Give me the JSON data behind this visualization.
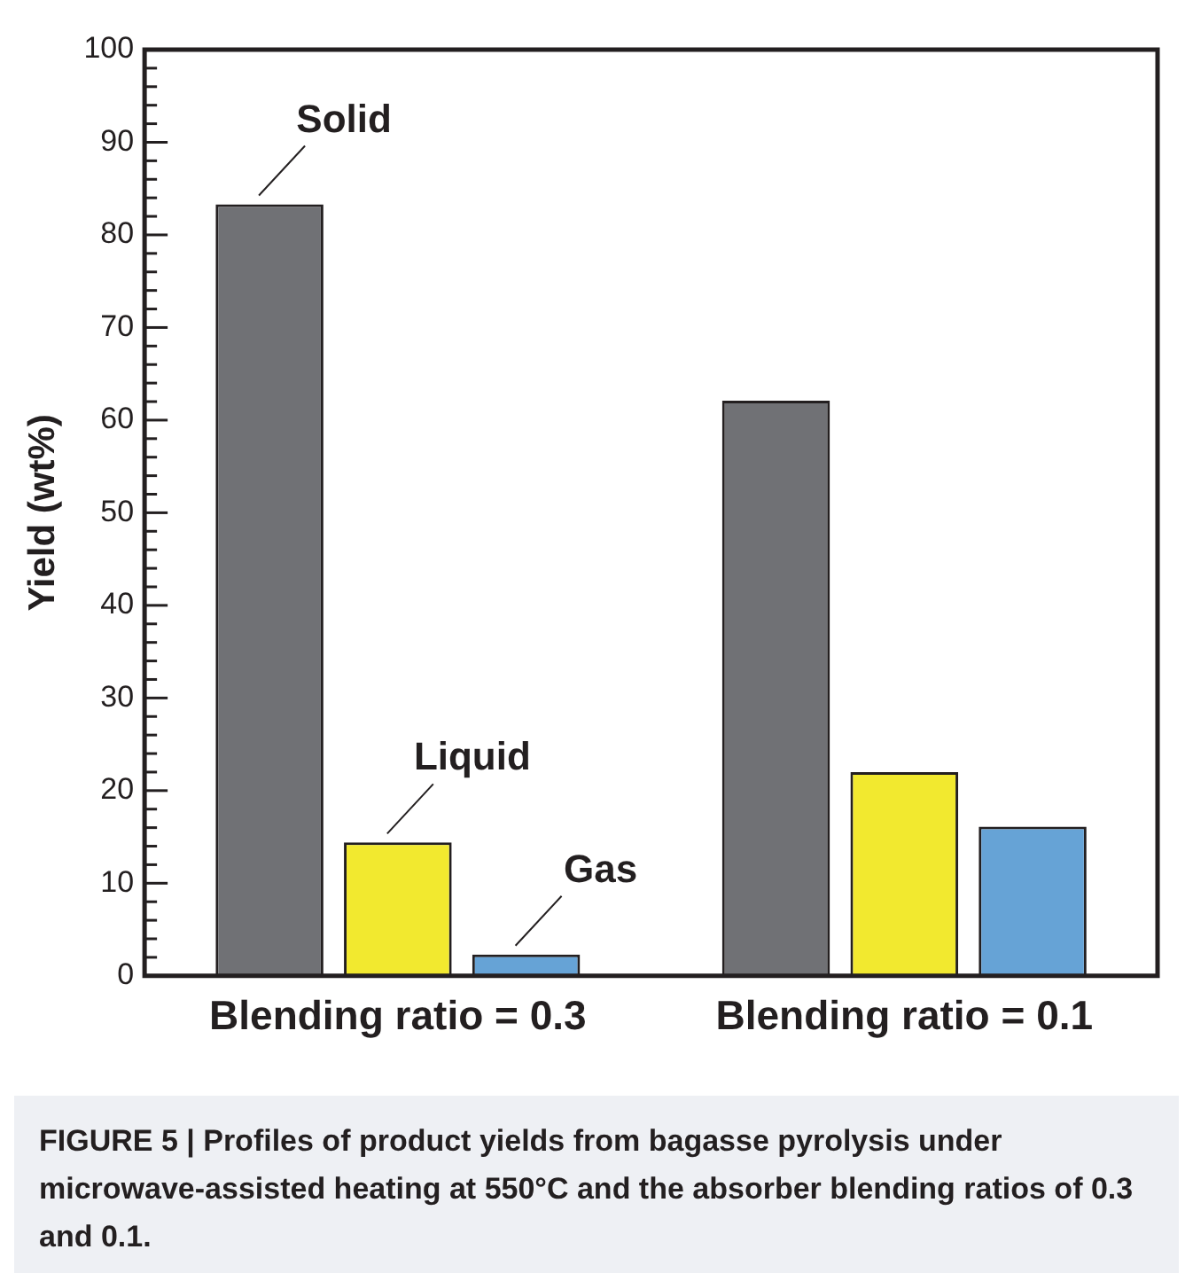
{
  "chart_data": {
    "type": "bar",
    "categories": [
      "Blending ratio = 0.3",
      "Blending ratio = 0.1"
    ],
    "series": [
      {
        "name": "Solid",
        "color": "#707175",
        "values": [
          83.3,
          62.1
        ]
      },
      {
        "name": "Liquid",
        "color": "#f2e92f",
        "values": [
          14.4,
          22.0
        ]
      },
      {
        "name": "Gas",
        "color": "#66a3d6",
        "values": [
          2.3,
          16.1
        ]
      }
    ],
    "ylabel": "Yield (wt%)",
    "ylim": [
      0,
      100
    ],
    "yticks": [
      0,
      {
        "value": 2,
        "label": null
      },
      {
        "value": 4,
        "label": null
      },
      {
        "value": 6,
        "label": null
      },
      {
        "value": 8,
        "label": null
      },
      10,
      {
        "value": 12,
        "label": null
      },
      {
        "value": 14,
        "label": null
      },
      {
        "value": 16,
        "label": null
      },
      {
        "value": 18,
        "label": null
      },
      20,
      {
        "value": 22,
        "label": null
      },
      {
        "value": 24,
        "label": null
      },
      {
        "value": 26,
        "label": null
      },
      {
        "value": 28,
        "label": null
      },
      30,
      {
        "value": 32,
        "label": null
      },
      {
        "value": 34,
        "label": null
      },
      {
        "value": 36,
        "label": null
      },
      {
        "value": 38,
        "label": null
      },
      40,
      {
        "value": 42,
        "label": null
      },
      {
        "value": 44,
        "label": null
      },
      {
        "value": 46,
        "label": null
      },
      {
        "value": 48,
        "label": null
      },
      50,
      {
        "value": 52,
        "label": null
      },
      {
        "value": 54,
        "label": null
      },
      {
        "value": 56,
        "label": null
      },
      {
        "value": 58,
        "label": null
      },
      60,
      {
        "value": 62,
        "label": null
      },
      {
        "value": 64,
        "label": null
      },
      {
        "value": 66,
        "label": null
      },
      {
        "value": 68,
        "label": null
      },
      70,
      {
        "value": 72,
        "label": null
      },
      {
        "value": 74,
        "label": null
      },
      {
        "value": 76,
        "label": null
      },
      {
        "value": 78,
        "label": null
      },
      80,
      {
        "value": 82,
        "label": null
      },
      {
        "value": 84,
        "label": null
      },
      {
        "value": 86,
        "label": null
      },
      {
        "value": 88,
        "label": null
      },
      90,
      {
        "value": 92,
        "label": null
      },
      {
        "value": 94,
        "label": null
      },
      {
        "value": 96,
        "label": null
      },
      {
        "value": 98,
        "label": null
      },
      100
    ],
    "grid": false,
    "legend": false,
    "annotations": [
      "FIGURE 5 | Profiles of product yields from bagasse pyrolysis under microwave-assisted heating at 550°C and the absorber blending ratios of 0.3 and 0.1."
    ]
  }
}
